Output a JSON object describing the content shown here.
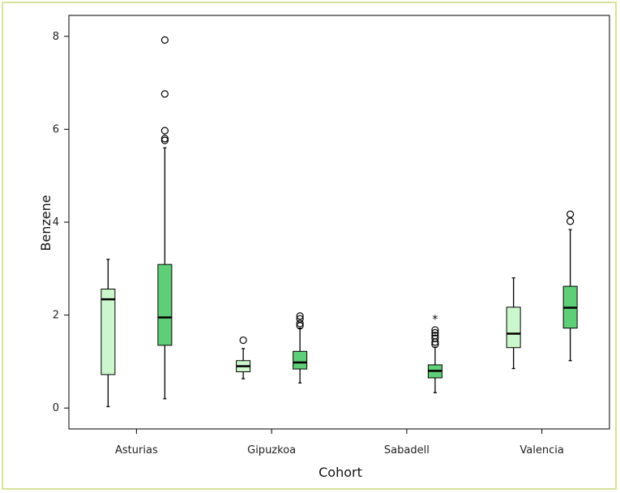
{
  "chart_data": {
    "type": "boxplot",
    "title": "",
    "xlabel": "Cohort",
    "ylabel": "Benzene",
    "ylim": [
      -0.45,
      8.45
    ],
    "yticks": [
      0,
      2,
      4,
      6,
      8
    ],
    "grid": false,
    "categories": [
      "Asturias",
      "Gipuzkoa",
      "Sabadell",
      "Valencia"
    ],
    "series": [
      {
        "color": "#ccf7cc",
        "boxes": [
          {
            "whisker_low": 0.03,
            "q1": 0.72,
            "median": 2.34,
            "q3": 2.56,
            "whisker_high": 3.2,
            "outliers": [],
            "extremes": []
          },
          {
            "whisker_low": 0.63,
            "q1": 0.78,
            "median": 0.9,
            "q3": 1.02,
            "whisker_high": 1.28,
            "outliers": [
              1.46
            ],
            "extremes": []
          },
          null,
          {
            "whisker_low": 0.85,
            "q1": 1.3,
            "median": 1.6,
            "q3": 2.17,
            "whisker_high": 2.8,
            "outliers": [],
            "extremes": []
          }
        ]
      },
      {
        "color": "#5fce78",
        "boxes": [
          {
            "whisker_low": 0.2,
            "q1": 1.35,
            "median": 1.95,
            "q3": 3.09,
            "whisker_high": 5.6,
            "outliers": [
              5.76,
              5.8,
              5.97,
              6.76,
              7.92
            ],
            "extremes": []
          },
          {
            "whisker_low": 0.54,
            "q1": 0.84,
            "median": 0.98,
            "q3": 1.22,
            "whisker_high": 1.72,
            "outliers": [
              1.77,
              1.82,
              1.92,
              1.98
            ],
            "extremes": []
          },
          {
            "whisker_low": 0.33,
            "q1": 0.65,
            "median": 0.8,
            "q3": 0.93,
            "whisker_high": 1.31,
            "outliers": [
              1.37,
              1.42,
              1.5,
              1.56,
              1.62,
              1.68
            ],
            "extremes": [
              1.93
            ]
          },
          {
            "whisker_low": 1.02,
            "q1": 1.72,
            "median": 2.16,
            "q3": 2.62,
            "whisker_high": 3.84,
            "outliers": [
              4.02,
              4.17
            ],
            "extremes": []
          }
        ]
      }
    ]
  }
}
